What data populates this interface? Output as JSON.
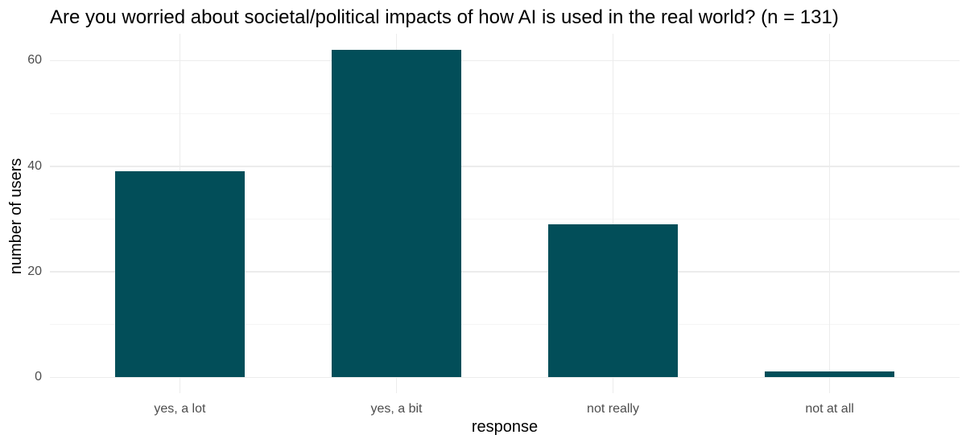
{
  "chart_data": {
    "type": "bar",
    "title": "Are you worried about societal/political impacts of how AI is used in the real world? (n = 131)",
    "xlabel": "response",
    "ylabel": "number of users",
    "categories": [
      "yes, a lot",
      "yes, a bit",
      "not really",
      "not at all"
    ],
    "values": [
      39,
      62,
      29,
      1
    ],
    "yticks": [
      0,
      20,
      40,
      60
    ],
    "yticks_minor": [
      10,
      30,
      50
    ],
    "ylim": [
      0,
      65
    ],
    "legend_position": "none",
    "grid": "on",
    "colors": {
      "bar": "#024e59",
      "grid_major": "#ececec",
      "grid_minor": "#f5f5f5",
      "tick_label": "#4d4d4d",
      "text": "#000000",
      "background": "#ffffff"
    }
  }
}
